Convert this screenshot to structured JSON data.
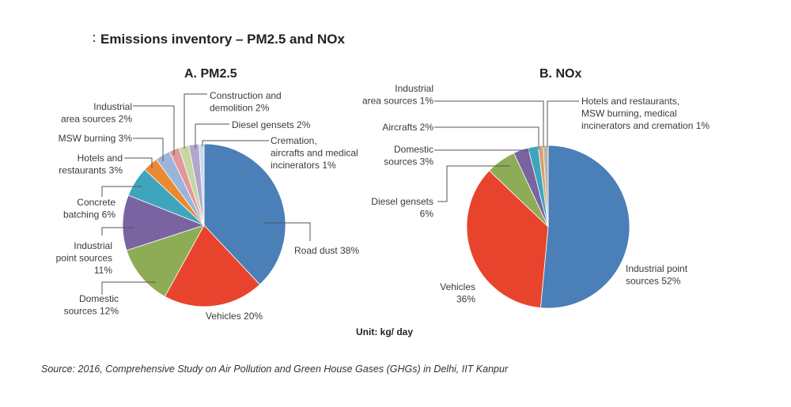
{
  "title": "Emissions inventory – PM2.5 and NOx",
  "unit": "Unit: kg/ day",
  "source": "Source: 2016, Comprehensive Study on Air Pollution and Green House Gases (GHGs) in Delhi, IIT Kanpur",
  "chart_data": [
    {
      "type": "pie",
      "title": "A. PM2.5",
      "slices": [
        {
          "label": [
            "Road dust 38%"
          ],
          "value": 38,
          "color": "#4a7fb8"
        },
        {
          "label": [
            "Vehicles 20%"
          ],
          "value": 20,
          "color": "#e8442d"
        },
        {
          "label": [
            "Domestic",
            "sources 12%"
          ],
          "value": 12,
          "color": "#8eac56"
        },
        {
          "label": [
            "Industrial",
            "point sources",
            "11%"
          ],
          "value": 11,
          "color": "#7a63a1"
        },
        {
          "label": [
            "Concrete",
            "batching 6%"
          ],
          "value": 6,
          "color": "#3ea5bd"
        },
        {
          "label": [
            "Hotels and",
            "restaurants 3%"
          ],
          "value": 3,
          "color": "#e88a32"
        },
        {
          "label": [
            "MSW burning 3%"
          ],
          "value": 3,
          "color": "#9bb4da"
        },
        {
          "label": [
            "Industrial",
            "area sources 2%"
          ],
          "value": 2,
          "color": "#e2979b"
        },
        {
          "label": [
            "Construction and",
            "demolition 2%"
          ],
          "value": 2,
          "color": "#c5d79e"
        },
        {
          "label": [
            "Diesel gensets 2%"
          ],
          "value": 2,
          "color": "#b3a5cc"
        },
        {
          "label": [
            "Cremation,",
            "aircrafts and medical",
            "incinerators 1%"
          ],
          "value": 1,
          "color": "#c8d9ee"
        }
      ]
    },
    {
      "type": "pie",
      "title": "B. NOx",
      "slices": [
        {
          "label": [
            "Industrial point",
            "sources 52%"
          ],
          "value": 52,
          "color": "#4a7fb8"
        },
        {
          "label": [
            "Vehicles",
            "36%"
          ],
          "value": 36,
          "color": "#e8442d"
        },
        {
          "label": [
            "Diesel gensets",
            "6%"
          ],
          "value": 6,
          "color": "#8eac56"
        },
        {
          "label": [
            "Domestic",
            "sources 3%"
          ],
          "value": 3,
          "color": "#7a63a1"
        },
        {
          "label": [
            "Aircrafts 2%"
          ],
          "value": 2,
          "color": "#3ea5bd"
        },
        {
          "label": [
            "Industrial",
            "area sources 1%"
          ],
          "value": 1,
          "color": "#d9a070"
        },
        {
          "label": [
            "Hotels and restaurants,",
            "MSW burning, medical",
            "incinerators and cremation 1%"
          ],
          "value": 1,
          "color": "#b7b3ad"
        }
      ]
    }
  ]
}
